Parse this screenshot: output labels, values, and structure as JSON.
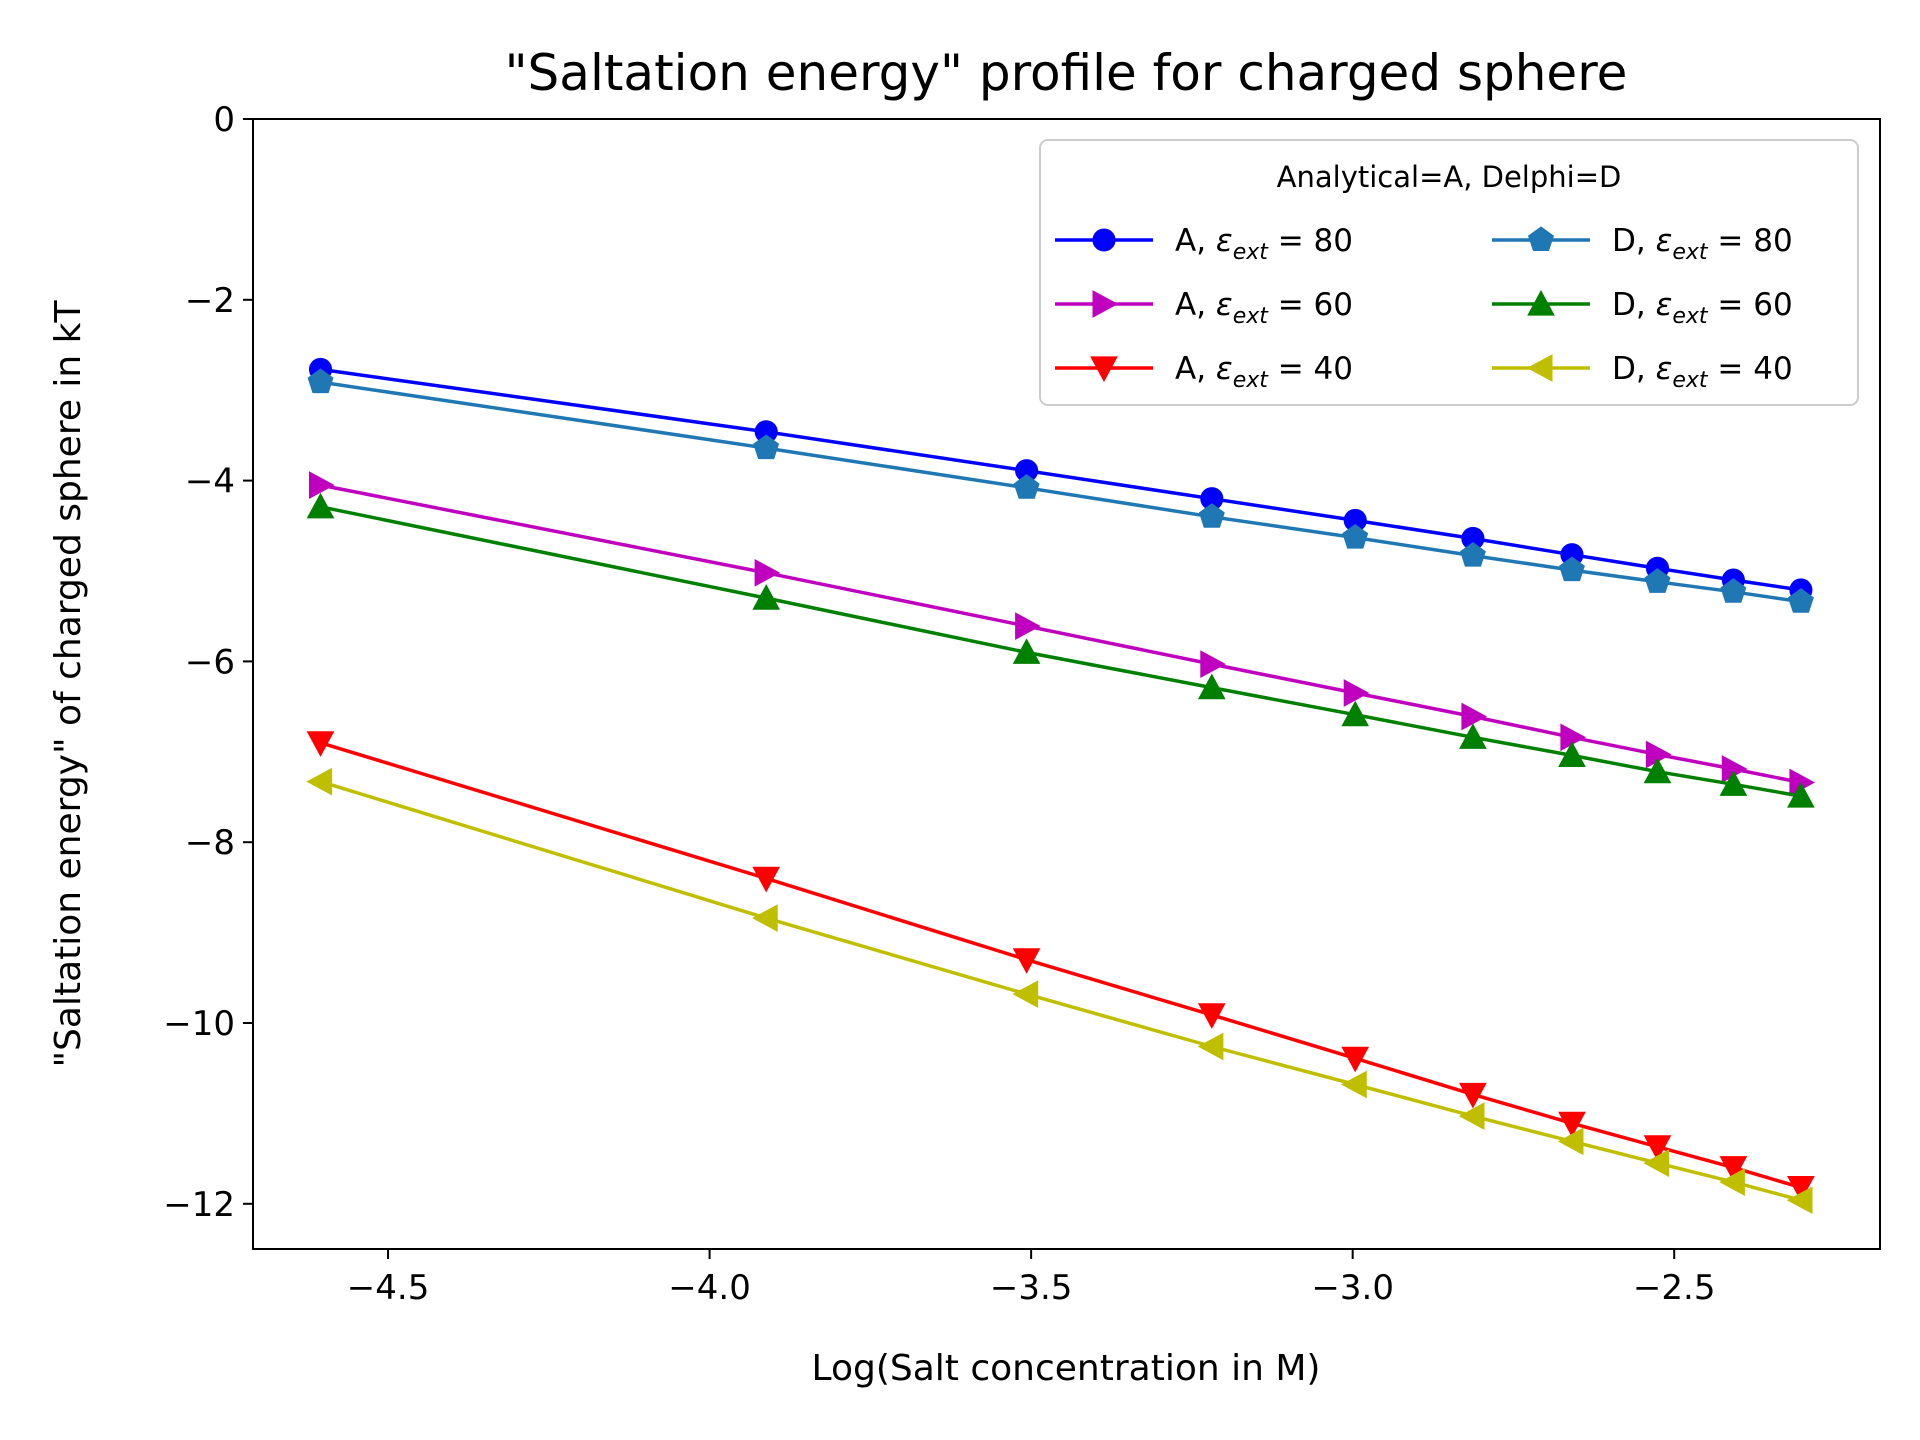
{
  "chart_data": {
    "type": "line",
    "title": "\"Saltation energy\" profile for charged sphere",
    "xlabel": "Log(Salt concentration in M)",
    "ylabel": "\"Saltation energy\" of charged sphere in kT",
    "xlim": [
      -4.71,
      -2.18
    ],
    "ylim": [
      -12.5,
      0
    ],
    "xticks": [
      -4.5,
      -4.0,
      -3.5,
      -3.0,
      -2.5
    ],
    "xtick_labels": [
      "−4.5",
      "−4.0",
      "−3.5",
      "−3.0",
      "−2.5"
    ],
    "yticks": [
      0,
      -2,
      -4,
      -6,
      -8,
      -10,
      -12
    ],
    "ytick_labels": [
      "0",
      "−2",
      "−4",
      "−6",
      "−8",
      "−10",
      "−12"
    ],
    "grid": false,
    "legend": {
      "title": "Analytical=A, Delphi=D",
      "placement": "top-right",
      "columns": 2
    },
    "x": [
      -4.605,
      -3.912,
      -3.507,
      -3.219,
      -2.996,
      -2.813,
      -2.659,
      -2.526,
      -2.408,
      -2.303
    ],
    "series": [
      {
        "name": "A, εext = 80",
        "prefix": "A,",
        "eps_value": "80",
        "color": "#0000ff",
        "marker": "circle",
        "values": [
          -2.77,
          -3.46,
          -3.89,
          -4.2,
          -4.44,
          -4.64,
          -4.82,
          -4.97,
          -5.1,
          -5.21
        ]
      },
      {
        "name": "A, εext = 60",
        "prefix": "A,",
        "eps_value": "60",
        "color": "#bf00bf",
        "marker": "triangle-right",
        "values": [
          -4.05,
          -5.02,
          -5.61,
          -6.03,
          -6.35,
          -6.61,
          -6.84,
          -7.03,
          -7.19,
          -7.34
        ]
      },
      {
        "name": "A, εext = 40",
        "prefix": "A,",
        "eps_value": "40",
        "color": "#ff0000",
        "marker": "triangle-down",
        "values": [
          -6.9,
          -8.4,
          -9.3,
          -9.91,
          -10.39,
          -10.79,
          -11.11,
          -11.37,
          -11.6,
          -11.82
        ]
      },
      {
        "name": "D, εext = 80",
        "prefix": "D,",
        "eps_value": "80",
        "color": "#1f77b4",
        "marker": "pentagon",
        "values": [
          -2.91,
          -3.64,
          -4.08,
          -4.4,
          -4.63,
          -4.83,
          -4.99,
          -5.12,
          -5.23,
          -5.34
        ]
      },
      {
        "name": "D, εext = 60",
        "prefix": "D,",
        "eps_value": "60",
        "color": "#008000",
        "marker": "triangle-up",
        "values": [
          -4.29,
          -5.3,
          -5.9,
          -6.29,
          -6.59,
          -6.84,
          -7.04,
          -7.22,
          -7.36,
          -7.49
        ]
      },
      {
        "name": "D, εext = 40",
        "prefix": "D,",
        "eps_value": "40",
        "color": "#bfbf00",
        "marker": "triangle-left",
        "values": [
          -7.33,
          -8.84,
          -9.68,
          -10.26,
          -10.68,
          -11.03,
          -11.31,
          -11.55,
          -11.76,
          -11.96
        ]
      }
    ]
  }
}
